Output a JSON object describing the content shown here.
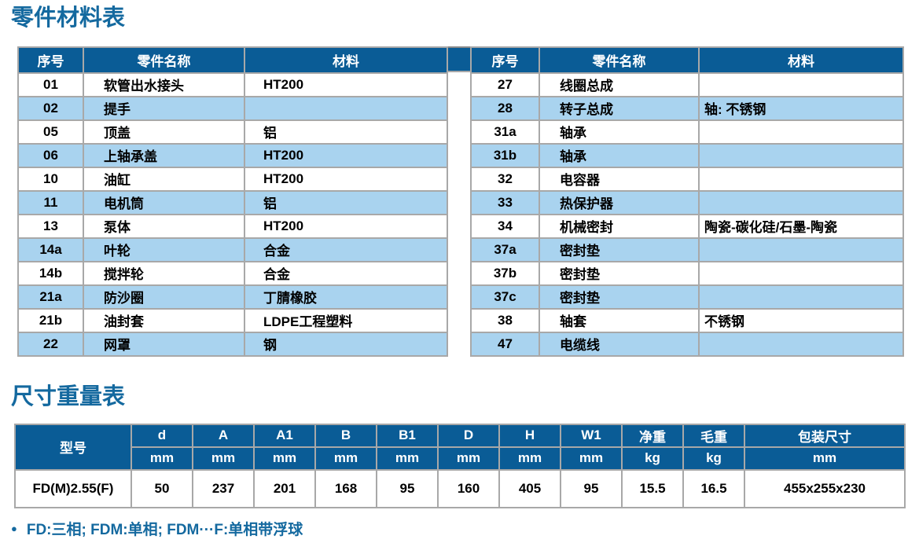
{
  "parts_section": {
    "title": "零件材料表",
    "columns": [
      "序号",
      "零件名称",
      "材料"
    ],
    "left_rows": [
      [
        "01",
        "软管出水接头",
        "HT200"
      ],
      [
        "02",
        "提手",
        ""
      ],
      [
        "05",
        "顶盖",
        "铝"
      ],
      [
        "06",
        "上轴承盖",
        "HT200"
      ],
      [
        "10",
        "油缸",
        "HT200"
      ],
      [
        "11",
        "电机筒",
        "铝"
      ],
      [
        "13",
        "泵体",
        "HT200"
      ],
      [
        "14a",
        "叶轮",
        "合金"
      ],
      [
        "14b",
        "搅拌轮",
        "合金"
      ],
      [
        "21a",
        "防沙圈",
        "丁腈橡胶"
      ],
      [
        "21b",
        "油封套",
        "LDPE工程塑料"
      ],
      [
        "22",
        "网罩",
        "钢"
      ]
    ],
    "right_rows": [
      [
        "27",
        "线圈总成",
        ""
      ],
      [
        "28",
        "转子总成",
        "轴: 不锈钢"
      ],
      [
        "31a",
        "轴承",
        ""
      ],
      [
        "31b",
        "轴承",
        ""
      ],
      [
        "32",
        "电容器",
        ""
      ],
      [
        "33",
        "热保护器",
        ""
      ],
      [
        "34",
        "机械密封",
        "陶瓷-碳化硅/石墨-陶瓷"
      ],
      [
        "37a",
        "密封垫",
        ""
      ],
      [
        "37b",
        "密封垫",
        ""
      ],
      [
        "37c",
        "密封垫",
        ""
      ],
      [
        "38",
        "轴套",
        "不锈钢"
      ],
      [
        "47",
        "电缆线",
        ""
      ]
    ]
  },
  "dims_section": {
    "title": "尺寸重量表",
    "model_column": "型号",
    "columns": [
      {
        "label": "d",
        "unit": "mm"
      },
      {
        "label": "A",
        "unit": "mm"
      },
      {
        "label": "A1",
        "unit": "mm"
      },
      {
        "label": "B",
        "unit": "mm"
      },
      {
        "label": "B1",
        "unit": "mm"
      },
      {
        "label": "D",
        "unit": "mm"
      },
      {
        "label": "H",
        "unit": "mm"
      },
      {
        "label": "W1",
        "unit": "mm"
      },
      {
        "label": "净重",
        "unit": "kg"
      },
      {
        "label": "毛重",
        "unit": "kg"
      },
      {
        "label": "包装尺寸",
        "unit": "mm"
      }
    ],
    "rows": [
      [
        "FD(M)2.55(F)",
        "50",
        "237",
        "201",
        "168",
        "95",
        "160",
        "405",
        "95",
        "15.5",
        "16.5",
        "455x255x230"
      ]
    ]
  },
  "footnote": {
    "bullet": "●",
    "text": "FD:三相; FDM:单相; FDM···F:单相带浮球"
  },
  "colors": {
    "header_blue": "#0a5c96",
    "title_blue": "#14699f",
    "row_blue": "#a9d3ef",
    "border_gray": "#a8a8a8"
  }
}
